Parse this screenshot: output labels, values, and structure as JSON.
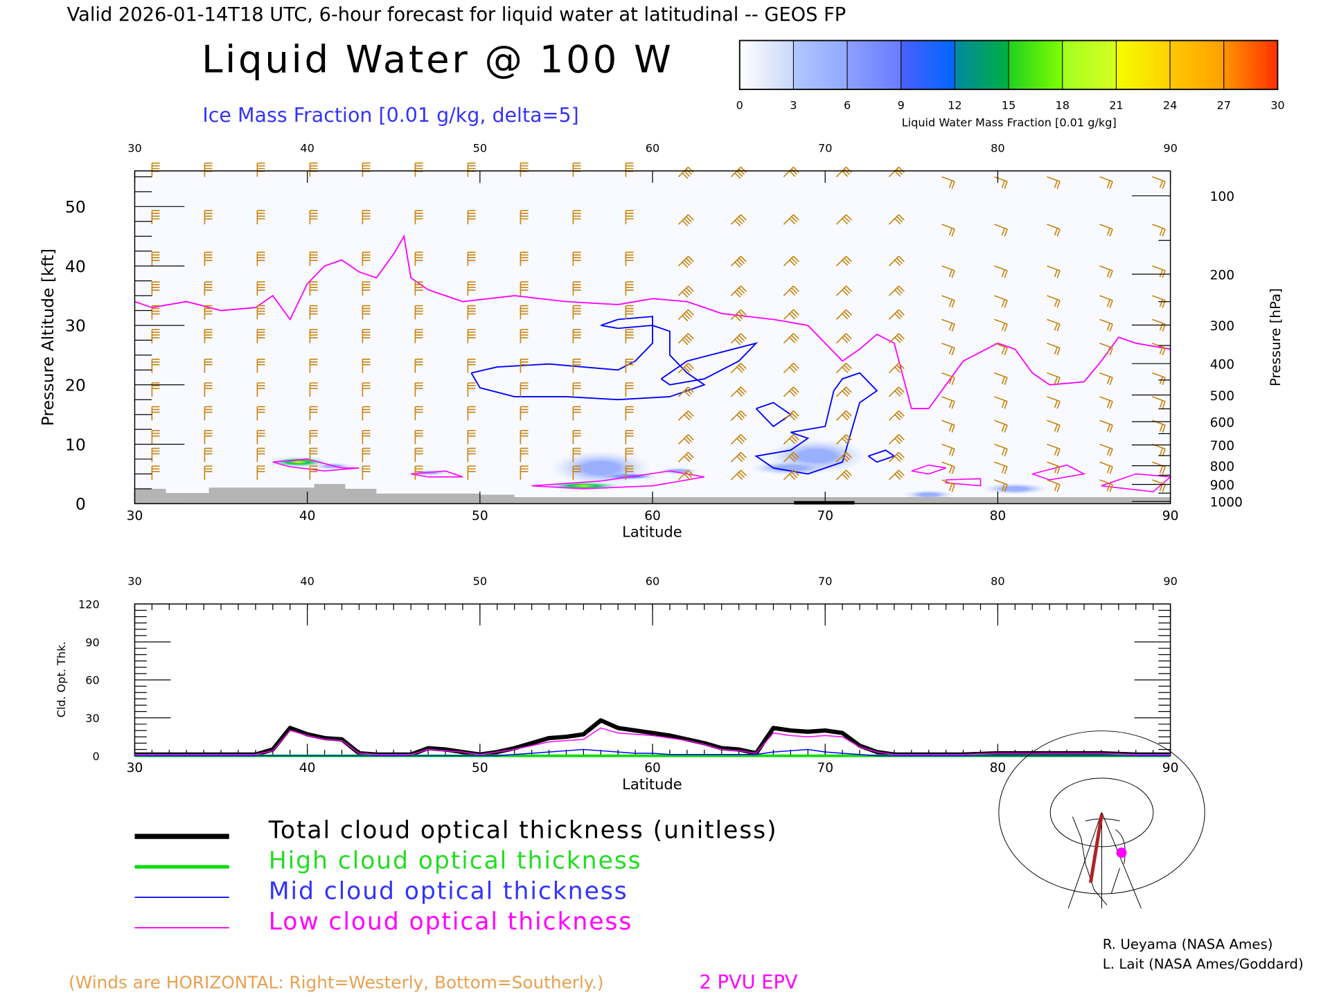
{
  "header": {
    "valid_line": "Valid 2026-01-14T18 UTC, 6-hour forecast for liquid water at latitudinal -- GEOS FP",
    "title": "Liquid Water @ 100 W",
    "ice_label": "Ice Mass Fraction [0.01 g/kg, delta=5]"
  },
  "colorbar": {
    "ticks": [
      "0",
      "3",
      "6",
      "9",
      "12",
      "15",
      "18",
      "21",
      "24",
      "27",
      "30"
    ],
    "label": "Liquid Water Mass Fraction [0.01 g/kg]",
    "segments": [
      [
        "#ffffff",
        "#c8d8f8"
      ],
      [
        "#b0c8ff",
        "#90a8ff"
      ],
      [
        "#8ca0ff",
        "#6a7cff"
      ],
      [
        "#4a60ff",
        "#0066ff"
      ],
      [
        "#0088a0",
        "#00b040"
      ],
      [
        "#20d020",
        "#80ff00"
      ],
      [
        "#a0ff20",
        "#d8ff20"
      ],
      [
        "#f4ff00",
        "#ffd000"
      ],
      [
        "#ffc800",
        "#ffa000"
      ],
      [
        "#ff9400",
        "#ff3000"
      ]
    ]
  },
  "chart_data": [
    {
      "type": "contour",
      "title": "Liquid Water @ 100 W",
      "xlabel": "Latitude",
      "ylabel": "Pressure Altitude [kft]",
      "ylabel_right": "Pressure [hPa]",
      "xlim": [
        30,
        90
      ],
      "ylim": [
        0,
        56
      ],
      "x_ticks": [
        "30",
        "40",
        "50",
        "60",
        "70",
        "80",
        "90"
      ],
      "y_ticks": [
        "0",
        "10",
        "20",
        "30",
        "40",
        "50"
      ],
      "pressure_ticks": [
        "100",
        "200",
        "300",
        "400",
        "500",
        "600",
        "700",
        "800",
        "900",
        "1000"
      ],
      "epv_2pvu_line": [
        [
          30,
          34
        ],
        [
          31,
          33
        ],
        [
          33,
          34
        ],
        [
          35,
          32.5
        ],
        [
          37,
          33
        ],
        [
          38,
          35
        ],
        [
          39,
          31
        ],
        [
          40,
          37
        ],
        [
          41,
          40
        ],
        [
          42,
          41
        ],
        [
          43,
          39
        ],
        [
          44,
          38
        ],
        [
          45,
          42
        ],
        [
          45.6,
          45
        ],
        [
          46,
          38
        ],
        [
          47,
          36
        ],
        [
          49,
          34
        ],
        [
          52,
          35
        ],
        [
          55,
          34
        ],
        [
          58,
          33.5
        ],
        [
          60,
          34.5
        ],
        [
          62,
          34
        ],
        [
          64,
          32
        ],
        [
          67,
          31
        ],
        [
          69,
          30
        ],
        [
          71,
          24
        ],
        [
          72,
          26
        ],
        [
          73,
          28.5
        ],
        [
          74,
          27
        ],
        [
          75,
          16
        ],
        [
          76,
          16
        ],
        [
          77,
          20
        ],
        [
          78,
          24
        ],
        [
          80,
          27
        ],
        [
          81,
          26
        ],
        [
          82,
          22
        ],
        [
          83,
          20
        ],
        [
          85,
          20.5
        ],
        [
          86,
          24
        ],
        [
          87,
          28
        ],
        [
          88,
          27
        ],
        [
          90,
          26
        ]
      ],
      "ice_contours": [
        [
          [
            49.5,
            22
          ],
          [
            51,
            23
          ],
          [
            54,
            23.5
          ],
          [
            56,
            23
          ],
          [
            58,
            22.5
          ],
          [
            59,
            24
          ],
          [
            60,
            27
          ],
          [
            60,
            30
          ],
          [
            61,
            29
          ],
          [
            61,
            25
          ],
          [
            62,
            22
          ],
          [
            63,
            20
          ],
          [
            61,
            18
          ],
          [
            58,
            17.5
          ],
          [
            55,
            18
          ],
          [
            52,
            18
          ],
          [
            50,
            19.5
          ],
          [
            49.5,
            22
          ]
        ],
        [
          [
            57,
            30
          ],
          [
            58,
            31
          ],
          [
            60,
            31.5
          ],
          [
            60,
            30
          ],
          [
            58,
            29.5
          ],
          [
            57,
            30
          ]
        ],
        [
          [
            60.5,
            21
          ],
          [
            62,
            24
          ],
          [
            64,
            25.5
          ],
          [
            66,
            27
          ],
          [
            65,
            24
          ],
          [
            63,
            21
          ],
          [
            61,
            20
          ],
          [
            60.5,
            21
          ]
        ],
        [
          [
            66,
            16
          ],
          [
            67,
            17
          ],
          [
            68,
            15
          ],
          [
            67,
            13
          ],
          [
            66,
            16
          ]
        ],
        [
          [
            68,
            12
          ],
          [
            70,
            13
          ],
          [
            70.5,
            19
          ],
          [
            71,
            21
          ],
          [
            72,
            22
          ],
          [
            73,
            19
          ],
          [
            72,
            17
          ],
          [
            71.5,
            12
          ],
          [
            71,
            7
          ],
          [
            69,
            5
          ],
          [
            67,
            6
          ],
          [
            66,
            8
          ],
          [
            68,
            9
          ],
          [
            69,
            11
          ],
          [
            68,
            12
          ]
        ],
        [
          [
            72.5,
            8
          ],
          [
            73.5,
            9
          ],
          [
            74,
            8
          ],
          [
            73,
            7
          ],
          [
            72.5,
            8
          ]
        ]
      ],
      "liquid_water_blobs": [
        [
          39.5,
          7,
          1.8,
          0.9,
          14
        ],
        [
          41.5,
          6.3,
          1.2,
          0.6,
          6
        ],
        [
          47,
          5.2,
          1.2,
          0.5,
          4
        ],
        [
          56,
          3,
          2.4,
          0.7,
          18
        ],
        [
          58.5,
          4.6,
          1.8,
          0.6,
          10
        ],
        [
          61.5,
          5.5,
          1.2,
          0.6,
          4
        ],
        [
          57,
          6,
          3,
          3,
          1
        ],
        [
          69.5,
          8,
          3,
          3,
          2
        ],
        [
          68,
          6,
          2.5,
          1.2,
          5
        ],
        [
          76,
          1.5,
          1.5,
          0.8,
          1
        ],
        [
          81,
          2.5,
          2,
          1,
          1
        ]
      ],
      "low_liquid_contours": [
        [
          [
            38,
            7
          ],
          [
            40,
            7.5
          ],
          [
            42,
            6
          ],
          [
            43,
            6
          ],
          [
            41,
            5.5
          ],
          [
            39,
            6.2
          ],
          [
            38,
            7
          ]
        ],
        [
          [
            46,
            5
          ],
          [
            48,
            5.5
          ],
          [
            49,
            4.5
          ],
          [
            47,
            4.5
          ],
          [
            46,
            5
          ]
        ],
        [
          [
            53,
            3
          ],
          [
            57,
            3.8
          ],
          [
            61,
            5.5
          ],
          [
            63,
            4.5
          ],
          [
            60,
            3
          ],
          [
            56,
            2.5
          ],
          [
            53,
            3
          ]
        ],
        [
          [
            75,
            5.5
          ],
          [
            76,
            6.5
          ],
          [
            77,
            6
          ],
          [
            76,
            5
          ],
          [
            75,
            5.5
          ]
        ],
        [
          [
            77,
            4
          ],
          [
            79,
            4.2
          ],
          [
            79,
            3
          ],
          [
            77,
            3.5
          ],
          [
            77,
            4
          ]
        ],
        [
          [
            82,
            5
          ],
          [
            84,
            6.5
          ],
          [
            85,
            5
          ],
          [
            83,
            4
          ],
          [
            82,
            5
          ]
        ],
        [
          [
            86,
            3
          ],
          [
            88,
            5
          ],
          [
            90,
            4.5
          ],
          [
            89,
            2
          ],
          [
            86,
            3
          ]
        ]
      ]
    },
    {
      "type": "line",
      "xlabel": "Latitude",
      "ylabel": "Cld. Opt. Thk.",
      "xlim": [
        30,
        90
      ],
      "ylim": [
        0,
        120
      ],
      "x_ticks": [
        "30",
        "40",
        "50",
        "60",
        "70",
        "80",
        "90"
      ],
      "y_ticks": [
        "0",
        "30",
        "60",
        "90",
        "120"
      ],
      "x": [
        30,
        32,
        34,
        36,
        37,
        38,
        39,
        40,
        41,
        42,
        43,
        44,
        46,
        47,
        48,
        49,
        50,
        51,
        52,
        53,
        54,
        55,
        56,
        57,
        58,
        59,
        60,
        61,
        62,
        63,
        64,
        65,
        66,
        67,
        68,
        69,
        70,
        71,
        72,
        73,
        74,
        76,
        78,
        80,
        82,
        84,
        86,
        88,
        90
      ],
      "series": [
        {
          "name": "Total cloud optical thickness (unitless)",
          "color": "#000000",
          "values": [
            1,
            1,
            1,
            1,
            1,
            5,
            22,
            17,
            14,
            13,
            2,
            1,
            1,
            6,
            5,
            3,
            1,
            3,
            6,
            10,
            14,
            15,
            17,
            28,
            22,
            20,
            18,
            16,
            13,
            10,
            6,
            5,
            2,
            22,
            20,
            19,
            20,
            18,
            8,
            3,
            1,
            1,
            1,
            2,
            2,
            2,
            2,
            1,
            1
          ]
        },
        {
          "name": "High cloud optical thickness",
          "color": "#00dd00",
          "values": [
            0,
            0,
            0,
            0,
            0,
            0,
            0,
            0,
            0,
            0,
            0,
            0,
            0,
            0,
            0,
            0,
            0,
            0,
            0,
            0,
            0,
            0,
            0,
            0,
            0,
            0,
            0,
            0,
            0,
            0,
            0,
            0,
            0,
            0,
            0,
            0,
            0,
            0,
            0,
            0,
            0,
            0,
            0,
            0,
            0,
            0,
            0,
            0,
            0
          ]
        },
        {
          "name": "Mid cloud optical thickness",
          "color": "#0000ff",
          "values": [
            0,
            0,
            0,
            0,
            0,
            0,
            0,
            0,
            0,
            0,
            0,
            0,
            0,
            0,
            0,
            0,
            0,
            0,
            1,
            2,
            3,
            4,
            5,
            4,
            3,
            2,
            2,
            1,
            1,
            1,
            1,
            1,
            1,
            3,
            4,
            5,
            3,
            2,
            1,
            0,
            0,
            0,
            0,
            0,
            0,
            0,
            0,
            0,
            0
          ]
        },
        {
          "name": "Low cloud optical thickness",
          "color": "#ff00ff",
          "values": [
            1,
            1,
            1,
            1,
            1,
            4,
            20,
            16,
            13,
            12,
            2,
            1,
            1,
            5,
            4,
            3,
            1,
            3,
            5,
            8,
            11,
            12,
            13,
            22,
            18,
            17,
            16,
            14,
            12,
            9,
            5,
            4,
            2,
            18,
            16,
            15,
            16,
            15,
            7,
            3,
            1,
            1,
            1,
            2,
            2,
            2,
            2,
            1,
            1
          ]
        }
      ]
    }
  ],
  "legend": {
    "items": [
      {
        "label": "Total cloud optical thickness (unitless)",
        "color": "#000000"
      },
      {
        "label": "High cloud optical thickness",
        "color": "#00dd00"
      },
      {
        "label": "Mid cloud optical thickness",
        "color": "#0000ff"
      },
      {
        "label": "Low cloud optical thickness",
        "color": "#ff00ff"
      }
    ]
  },
  "footer": {
    "winds_note": "(Winds are HORIZONTAL: Right=Westerly, Bottom=Southerly.)",
    "epv_label": "2 PVU EPV",
    "credit1": "R. Ueyama (NASA Ames)",
    "credit2": "L. Lait (NASA Ames/Goddard)"
  },
  "colors": {
    "wind": "#c8820c",
    "ice": "#0000ff",
    "epv": "#ff00ff",
    "terrain": "#b4b4b4",
    "section": "#b22222"
  }
}
